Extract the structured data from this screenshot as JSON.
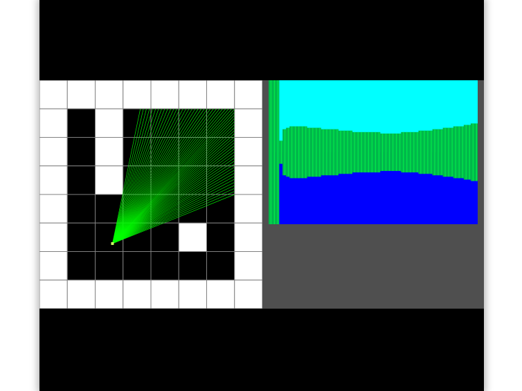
{
  "map": {
    "rows": 8,
    "cols": 8,
    "cells": [
      [
        1,
        1,
        1,
        1,
        1,
        1,
        1,
        1
      ],
      [
        1,
        0,
        1,
        0,
        0,
        0,
        0,
        1
      ],
      [
        1,
        0,
        1,
        0,
        0,
        0,
        0,
        1
      ],
      [
        1,
        0,
        1,
        0,
        0,
        0,
        0,
        1
      ],
      [
        1,
        0,
        0,
        0,
        0,
        0,
        0,
        1
      ],
      [
        1,
        0,
        0,
        0,
        0,
        1,
        0,
        1
      ],
      [
        1,
        0,
        0,
        0,
        0,
        0,
        0,
        1
      ],
      [
        1,
        1,
        1,
        1,
        1,
        1,
        1,
        1
      ]
    ],
    "wall_color": "#ffffff",
    "floor_color": "#000000",
    "grid_color": "#808080",
    "ray_color": "#00ff00",
    "player_color": "#ccff66",
    "player": {
      "col": 2.62,
      "row": 5.72
    },
    "ray_fan": {
      "from_col": 3.62,
      "to_col": 7.0,
      "top_row": 1.0,
      "to_row": 4.0,
      "count": 60
    }
  },
  "view": {
    "sky_color": "#00ffff",
    "ground_color": "#0000ff",
    "wall_color": "#00b84a",
    "stripe_color": "#00e84a",
    "column_count": 60,
    "wall_heights": [
      0.66,
      0.66,
      0.66,
      0.08,
      0.16,
      0.17,
      0.18,
      0.18,
      0.18,
      0.18,
      0.18,
      0.17,
      0.17,
      0.17,
      0.17,
      0.16,
      0.16,
      0.16,
      0.16,
      0.16,
      0.15,
      0.15,
      0.15,
      0.15,
      0.14,
      0.14,
      0.14,
      0.14,
      0.14,
      0.14,
      0.14,
      0.14,
      0.13,
      0.13,
      0.13,
      0.13,
      0.13,
      0.13,
      0.14,
      0.14,
      0.14,
      0.14,
      0.14,
      0.15,
      0.15,
      0.15,
      0.15,
      0.16,
      0.16,
      0.16,
      0.17,
      0.17,
      0.17,
      0.18,
      0.18,
      0.18,
      0.19,
      0.19,
      0.2,
      0.2
    ]
  }
}
